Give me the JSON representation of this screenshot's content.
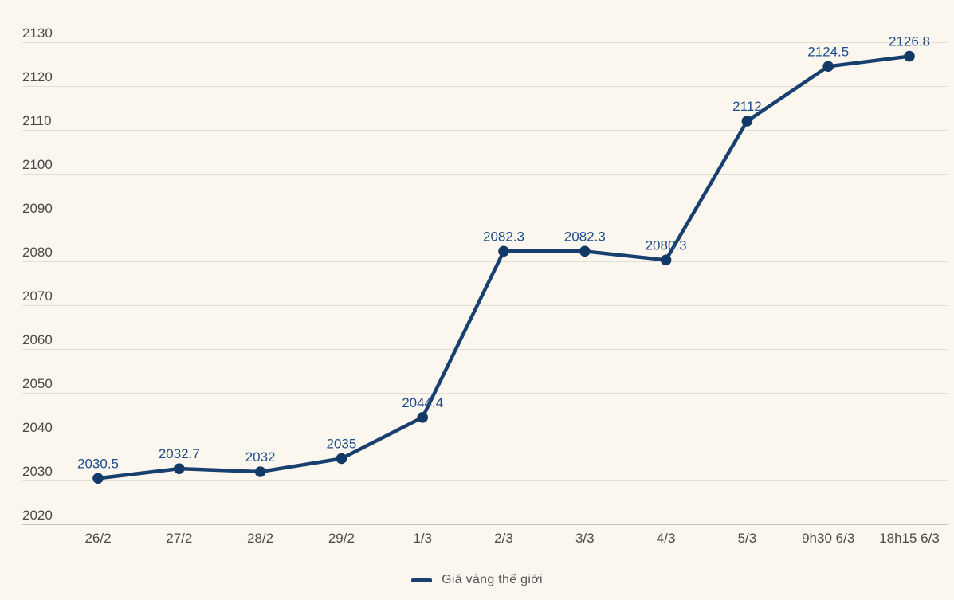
{
  "chart_data": {
    "type": "line",
    "categories": [
      "26/2",
      "27/2",
      "28/2",
      "29/2",
      "1/3",
      "2/3",
      "3/3",
      "4/3",
      "5/3",
      "9h30 6/3",
      "18h15 6/3"
    ],
    "series": [
      {
        "name": "Giá vàng thế giới",
        "values": [
          2030.5,
          2032.7,
          2032,
          2035,
          2044.4,
          2082.3,
          2082.3,
          2080.3,
          2112,
          2124.5,
          2126.8
        ]
      }
    ],
    "data_labels": [
      "2030.5",
      "2032.7",
      "2032",
      "2035",
      "2044.4",
      "2082.3",
      "2082.3",
      "2080.3",
      "2112",
      "2124.5",
      "2126.8"
    ],
    "y_ticks": [
      2020,
      2030,
      2040,
      2050,
      2060,
      2070,
      2080,
      2090,
      2100,
      2110,
      2120,
      2130
    ],
    "ylim": [
      2020,
      2130
    ],
    "ytick_step": 10,
    "grid": true,
    "legend_position": "bottom-center",
    "colors": {
      "background": "#fbf6ee",
      "line": "#17406e",
      "marker": "#123a68",
      "data_label": "#1d4e8a",
      "axis_text": "#4c4a47",
      "gridline": "#e2dfd8",
      "axis_line": "#c6c3bc",
      "legend_text": "#55565a"
    }
  }
}
